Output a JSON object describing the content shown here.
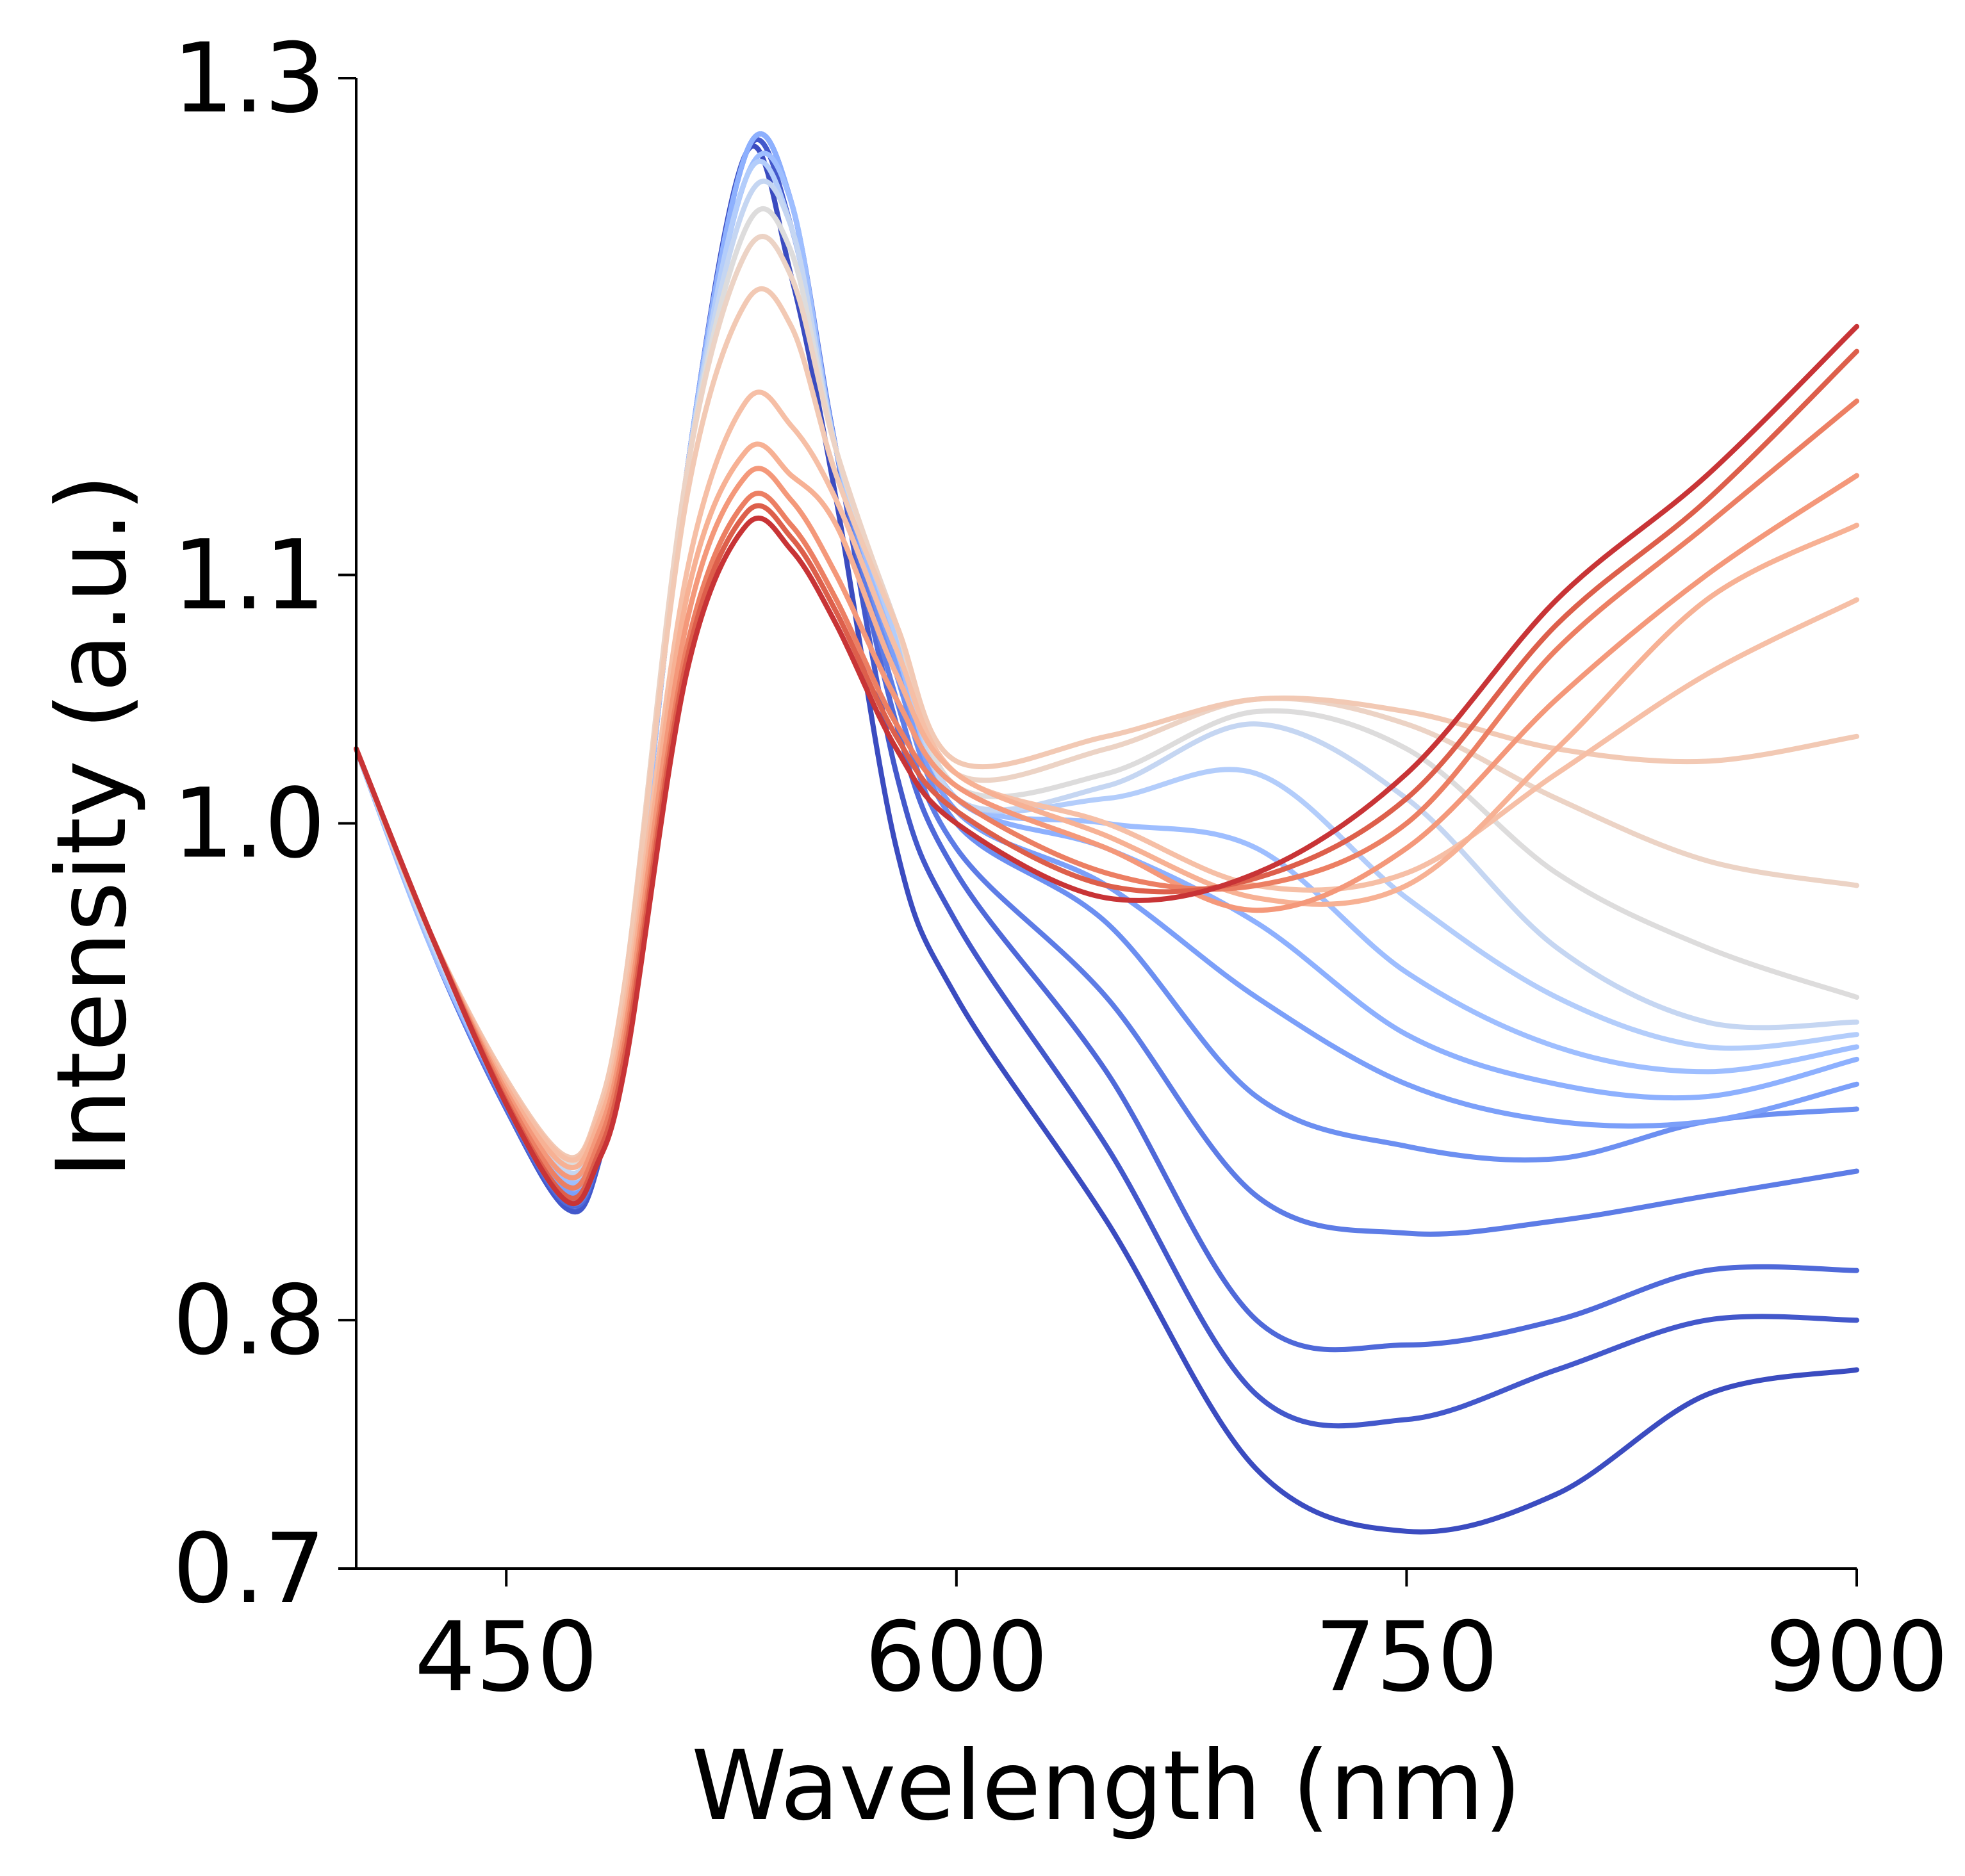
{
  "chart_data": {
    "type": "line",
    "title": "",
    "xlabel": "Wavelength (nm)",
    "ylabel": "Intensity (a.u.)",
    "xlim": [
      400,
      900
    ],
    "ylim": [
      0.7,
      1.3
    ],
    "xticks": [
      450,
      600,
      750,
      900
    ],
    "xtick_labels": [
      "450",
      "600",
      "750",
      "900"
    ],
    "yticks": [
      0.7,
      0.8,
      1.0,
      1.1,
      1.3
    ],
    "ytick_labels": [
      "0.7",
      "0.8",
      "1.0",
      "1.1",
      "1.3"
    ],
    "grid": false,
    "legend": "none",
    "colormap": "coolwarm",
    "x": [
      400,
      425,
      450,
      470,
      480,
      490,
      510,
      530,
      545,
      560,
      580,
      600,
      650,
      700,
      750,
      800,
      850,
      900
    ],
    "series": [
      {
        "color": "#3b4cc0",
        "values": [
          1.03,
          0.95,
          0.885,
          0.845,
          0.86,
          0.93,
          1.14,
          1.27,
          1.22,
          1.13,
          0.99,
          0.93,
          0.84,
          0.74,
          0.715,
          0.73,
          0.77,
          0.78
        ]
      },
      {
        "color": "#4358cb",
        "values": [
          1.03,
          0.95,
          0.885,
          0.845,
          0.86,
          0.93,
          1.14,
          1.27,
          1.24,
          1.15,
          1.02,
          0.96,
          0.87,
          0.77,
          0.76,
          0.78,
          0.8,
          0.8
        ]
      },
      {
        "color": "#4f69d9",
        "values": [
          1.03,
          0.95,
          0.885,
          0.847,
          0.862,
          0.93,
          1.14,
          1.27,
          1.25,
          1.15,
          1.04,
          0.98,
          0.9,
          0.8,
          0.79,
          0.8,
          0.82,
          0.82
        ]
      },
      {
        "color": "#5d7ce6",
        "values": [
          1.03,
          0.95,
          0.886,
          0.848,
          0.863,
          0.93,
          1.14,
          1.27,
          1.25,
          1.15,
          1.05,
          0.99,
          0.93,
          0.85,
          0.835,
          0.84,
          0.85,
          0.86
        ]
      },
      {
        "color": "#6c8ff1",
        "values": [
          1.03,
          0.95,
          0.887,
          0.85,
          0.865,
          0.93,
          1.14,
          1.27,
          1.25,
          1.15,
          1.06,
          1.0,
          0.96,
          0.89,
          0.87,
          0.865,
          0.88,
          0.885
        ]
      },
      {
        "color": "#7b9ff9",
        "values": [
          1.03,
          0.95,
          0.888,
          0.852,
          0.867,
          0.93,
          1.14,
          1.27,
          1.25,
          1.15,
          1.065,
          1.005,
          0.975,
          0.93,
          0.895,
          0.88,
          0.88,
          0.895
        ]
      },
      {
        "color": "#8db0fe",
        "values": [
          1.03,
          0.95,
          0.889,
          0.854,
          0.869,
          0.93,
          1.14,
          1.27,
          1.25,
          1.15,
          1.07,
          1.01,
          0.99,
          0.96,
          0.915,
          0.895,
          0.89,
          0.905
        ]
      },
      {
        "color": "#9ebeff",
        "values": [
          1.03,
          0.95,
          0.89,
          0.856,
          0.871,
          0.93,
          1.14,
          1.26,
          1.25,
          1.15,
          1.07,
          1.01,
          1.0,
          0.99,
          0.94,
          0.91,
          0.9,
          0.91
        ]
      },
      {
        "color": "#b3cdfb",
        "values": [
          1.03,
          0.952,
          0.892,
          0.858,
          0.873,
          0.935,
          1.14,
          1.26,
          1.24,
          1.15,
          1.075,
          1.01,
          1.01,
          1.02,
          0.97,
          0.93,
          0.91,
          0.915
        ]
      },
      {
        "color": "#c5d6f2",
        "values": [
          1.03,
          0.953,
          0.894,
          0.86,
          0.875,
          0.935,
          1.14,
          1.25,
          1.24,
          1.15,
          1.08,
          1.01,
          1.015,
          1.04,
          1.01,
          0.95,
          0.92,
          0.92
        ]
      },
      {
        "color": "#dddcdc",
        "values": [
          1.03,
          0.955,
          0.896,
          0.863,
          0.878,
          0.94,
          1.14,
          1.24,
          1.23,
          1.15,
          1.08,
          1.015,
          1.02,
          1.045,
          1.03,
          0.98,
          0.95,
          0.93
        ]
      },
      {
        "color": "#ecd3c5",
        "values": [
          1.03,
          0.955,
          0.897,
          0.865,
          0.88,
          0.94,
          1.14,
          1.23,
          1.22,
          1.15,
          1.08,
          1.02,
          1.03,
          1.05,
          1.04,
          1.01,
          0.985,
          0.975
        ]
      },
      {
        "color": "#f2c9b4",
        "values": [
          1.03,
          0.955,
          0.897,
          0.866,
          0.882,
          0.94,
          1.13,
          1.21,
          1.2,
          1.14,
          1.08,
          1.025,
          1.035,
          1.05,
          1.045,
          1.03,
          1.025,
          1.035
        ]
      },
      {
        "color": "#f6bfa6",
        "values": [
          1.03,
          0.955,
          0.896,
          0.865,
          0.88,
          0.93,
          1.1,
          1.17,
          1.16,
          1.13,
          1.07,
          1.02,
          1.0,
          0.975,
          0.98,
          1.02,
          1.06,
          1.09
        ]
      },
      {
        "color": "#f7b194",
        "values": [
          1.03,
          0.955,
          0.894,
          0.862,
          0.877,
          0.925,
          1.09,
          1.15,
          1.14,
          1.12,
          1.06,
          1.02,
          0.995,
          0.97,
          0.975,
          1.03,
          1.09,
          1.12
        ]
      },
      {
        "color": "#f4987a",
        "values": [
          1.03,
          0.955,
          0.892,
          0.858,
          0.873,
          0.92,
          1.08,
          1.14,
          1.13,
          1.1,
          1.05,
          1.015,
          0.99,
          0.965,
          0.99,
          1.05,
          1.1,
          1.14
        ]
      },
      {
        "color": "#ec7f63",
        "values": [
          1.03,
          0.955,
          0.89,
          0.854,
          0.869,
          0.915,
          1.07,
          1.13,
          1.12,
          1.09,
          1.04,
          1.01,
          0.98,
          0.975,
          1.0,
          1.07,
          1.12,
          1.17
        ]
      },
      {
        "color": "#dd5f4b",
        "values": [
          1.03,
          0.955,
          0.888,
          0.85,
          0.865,
          0.91,
          1.065,
          1.125,
          1.115,
          1.085,
          1.035,
          1.005,
          0.975,
          0.978,
          1.01,
          1.08,
          1.13,
          1.19
        ]
      },
      {
        "color": "#c83436",
        "values": [
          1.03,
          0.955,
          0.887,
          0.848,
          0.862,
          0.905,
          1.06,
          1.12,
          1.11,
          1.08,
          1.03,
          1.0,
          0.97,
          0.98,
          1.02,
          1.09,
          1.14,
          1.2
        ]
      }
    ]
  }
}
